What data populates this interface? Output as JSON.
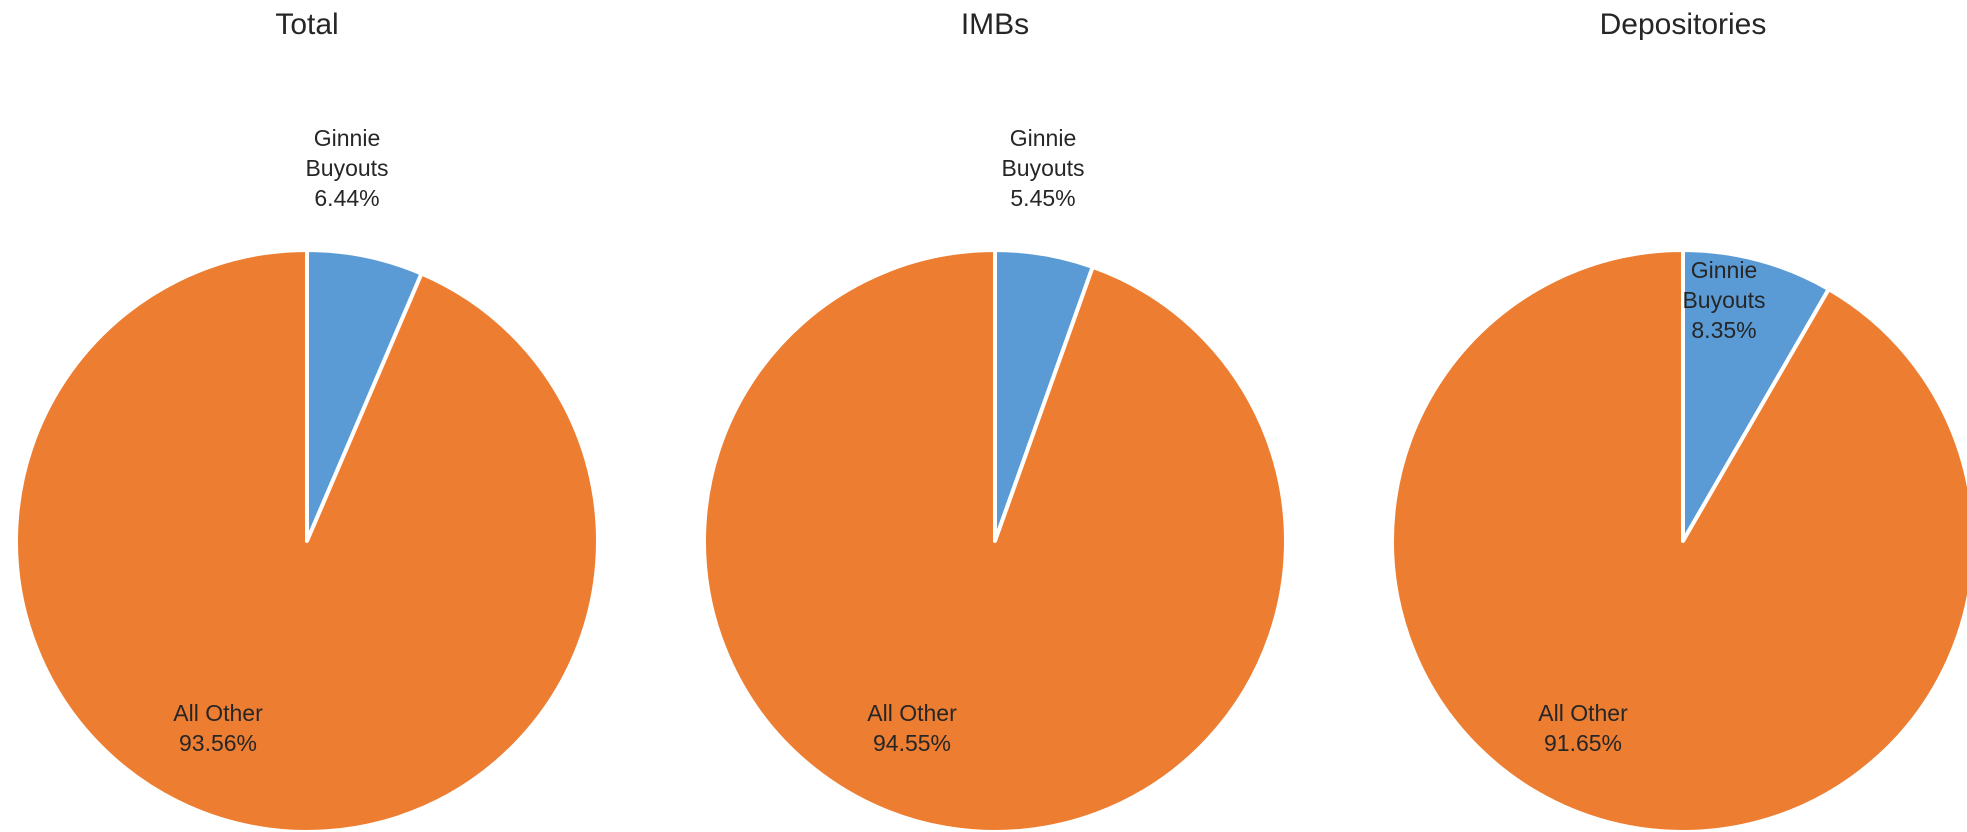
{
  "chart_data": [
    {
      "type": "pie",
      "title": "Total",
      "slices": [
        {
          "name": "Ginnie Buyouts",
          "label_lines": [
            "Ginnie",
            "Buyouts"
          ],
          "value": 6.44,
          "value_label": "6.44%"
        },
        {
          "name": "All Other",
          "label_lines": [
            "All Other"
          ],
          "value": 93.56,
          "value_label": "93.56%"
        }
      ]
    },
    {
      "type": "pie",
      "title": "IMBs",
      "slices": [
        {
          "name": "Ginnie Buyouts",
          "label_lines": [
            "Ginnie",
            "Buyouts"
          ],
          "value": 5.45,
          "value_label": "5.45%"
        },
        {
          "name": "All Other",
          "label_lines": [
            "All Other"
          ],
          "value": 94.55,
          "value_label": "94.55%"
        }
      ]
    },
    {
      "type": "pie",
      "title": "Depositories",
      "slices": [
        {
          "name": "Ginnie Buyouts",
          "label_lines": [
            "Ginnie",
            "Buyouts"
          ],
          "value": 8.35,
          "value_label": "8.35%"
        },
        {
          "name": "All Other",
          "label_lines": [
            "All Other"
          ],
          "value": 91.65,
          "value_label": "91.65%"
        }
      ]
    }
  ],
  "colors": {
    "ginnie_buyouts": "#5B9BD5",
    "all_other": "#ED7D31",
    "separator": "#ffffff"
  }
}
